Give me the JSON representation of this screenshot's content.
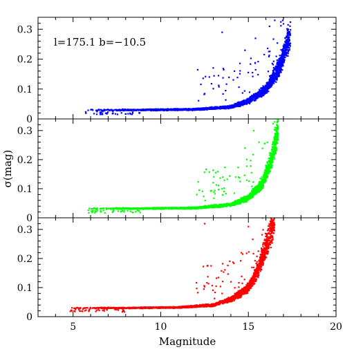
{
  "chart_data": {
    "type": "scatter",
    "layout": "three vertically stacked panels sharing the x axis",
    "xlabel": "Magnitude",
    "ylabel": "σ(mag)",
    "xlim": [
      3,
      20
    ],
    "ylim": [
      0,
      0.34
    ],
    "xticks": [
      "5",
      "10",
      "15",
      "20"
    ],
    "yticks": [
      "0",
      "0.1",
      "0.2",
      "0.3"
    ],
    "annotation": "l=175.1 b=−10.5",
    "panels": [
      {
        "name": "blue",
        "color": "#0000ff",
        "mag_min": 5.6,
        "mag_max": 17.4,
        "floor": 0.028,
        "curve": [
          [
            8.5,
            0.03
          ],
          [
            12,
            0.032
          ],
          [
            14,
            0.04
          ],
          [
            15,
            0.06
          ],
          [
            16,
            0.1
          ],
          [
            16.8,
            0.18
          ],
          [
            17.2,
            0.25
          ],
          [
            17.4,
            0.28
          ]
        ],
        "outliers": [
          [
            13.5,
            0.29
          ],
          [
            14.8,
            0.23
          ],
          [
            15.4,
            0.27
          ],
          [
            16.2,
            0.31
          ],
          [
            16.5,
            0.33
          ],
          [
            17.0,
            0.34
          ],
          [
            14.2,
            0.16
          ]
        ]
      },
      {
        "name": "green",
        "color": "#00ff00",
        "mag_min": 5.8,
        "mag_max": 16.7,
        "floor": 0.03,
        "curve": [
          [
            9,
            0.032
          ],
          [
            12,
            0.034
          ],
          [
            14,
            0.045
          ],
          [
            15,
            0.07
          ],
          [
            15.8,
            0.12
          ],
          [
            16.3,
            0.2
          ],
          [
            16.6,
            0.28
          ],
          [
            16.7,
            0.31
          ]
        ],
        "outliers": [
          [
            15.3,
            0.3
          ],
          [
            14.8,
            0.24
          ],
          [
            13.5,
            0.1
          ],
          [
            16.5,
            0.33
          ],
          [
            15.6,
            0.26
          ]
        ]
      },
      {
        "name": "red",
        "color": "#ff0000",
        "mag_min": 4.8,
        "mag_max": 16.5,
        "floor": 0.03,
        "curve": [
          [
            8,
            0.03
          ],
          [
            11,
            0.032
          ],
          [
            13,
            0.04
          ],
          [
            14,
            0.06
          ],
          [
            15,
            0.1
          ],
          [
            15.6,
            0.17
          ],
          [
            16.1,
            0.26
          ],
          [
            16.5,
            0.34
          ]
        ],
        "outliers": [
          [
            12.5,
            0.32
          ],
          [
            14.0,
            0.12
          ],
          [
            14.6,
            0.22
          ],
          [
            15.0,
            0.31
          ],
          [
            15.8,
            0.34
          ],
          [
            13.5,
            0.08
          ]
        ]
      }
    ]
  }
}
